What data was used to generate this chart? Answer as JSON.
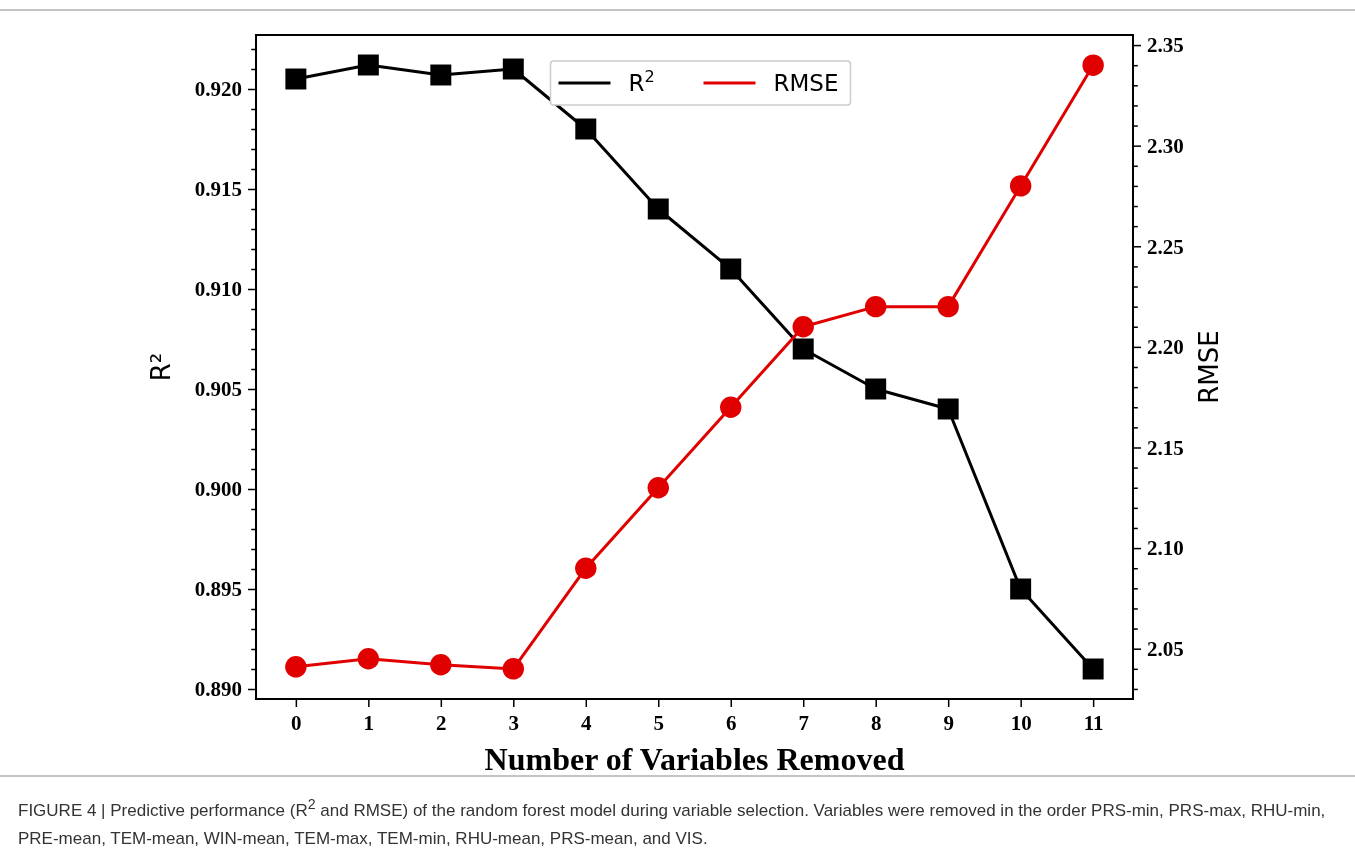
{
  "chart_data": {
    "type": "line",
    "xlabel": "Number of Variables Removed",
    "ylabel": "R²",
    "y2label": "RMSE",
    "x": [
      0,
      1,
      2,
      3,
      4,
      5,
      6,
      7,
      8,
      9,
      10,
      11
    ],
    "xlim": [
      -0.55,
      11.55
    ],
    "xticks": [
      0,
      1,
      2,
      3,
      4,
      5,
      6,
      7,
      8,
      9,
      10,
      11
    ],
    "ylim": [
      0.8895,
      0.9227
    ],
    "yticks": [
      "0.890",
      {
        "value": 0.891,
        "label": null
      },
      {
        "value": 0.892,
        "label": null
      },
      {
        "value": 0.893,
        "label": null
      },
      {
        "value": 0.894,
        "label": null
      },
      {
        "value": 0.895,
        "label": "0.895"
      },
      {
        "value": 0.896,
        "label": null
      },
      {
        "value": 0.897,
        "label": null
      },
      {
        "value": 0.898,
        "label": null
      },
      {
        "value": 0.899,
        "label": null
      },
      {
        "value": 0.9,
        "label": "0.900"
      },
      {
        "value": 0.901,
        "label": null
      },
      {
        "value": 0.902,
        "label": null
      },
      {
        "value": 0.903,
        "label": null
      },
      {
        "value": 0.904,
        "label": null
      },
      {
        "value": 0.905,
        "label": "0.905"
      },
      {
        "value": 0.906,
        "label": null
      },
      {
        "value": 0.907,
        "label": null
      },
      {
        "value": 0.908,
        "label": null
      },
      {
        "value": 0.909,
        "label": null
      },
      {
        "value": 0.91,
        "label": "0.910"
      },
      {
        "value": 0.911,
        "label": null
      },
      {
        "value": 0.912,
        "label": null
      },
      {
        "value": 0.913,
        "label": null
      },
      {
        "value": 0.914,
        "label": null
      },
      {
        "value": 0.915,
        "label": "0.915"
      },
      {
        "value": 0.916,
        "label": null
      },
      {
        "value": 0.917,
        "label": null
      },
      {
        "value": 0.918,
        "label": null
      },
      {
        "value": 0.919,
        "label": null
      },
      {
        "value": 0.92,
        "label": "0.920"
      },
      {
        "value": 0.921,
        "label": null
      },
      {
        "value": 0.922,
        "label": null
      }
    ],
    "y2lim": [
      2.025,
      2.355
    ],
    "y2ticks": [
      {
        "value": 2.03,
        "label": null
      },
      {
        "value": 2.04,
        "label": null
      },
      {
        "value": 2.05,
        "label": "2.05"
      },
      {
        "value": 2.06,
        "label": null
      },
      {
        "value": 2.07,
        "label": null
      },
      {
        "value": 2.08,
        "label": null
      },
      {
        "value": 2.09,
        "label": null
      },
      {
        "value": 2.1,
        "label": "2.10"
      },
      {
        "value": 2.11,
        "label": null
      },
      {
        "value": 2.12,
        "label": null
      },
      {
        "value": 2.13,
        "label": null
      },
      {
        "value": 2.14,
        "label": null
      },
      {
        "value": 2.15,
        "label": "2.15"
      },
      {
        "value": 2.16,
        "label": null
      },
      {
        "value": 2.17,
        "label": null
      },
      {
        "value": 2.18,
        "label": null
      },
      {
        "value": 2.19,
        "label": null
      },
      {
        "value": 2.2,
        "label": "2.20"
      },
      {
        "value": 2.21,
        "label": null
      },
      {
        "value": 2.22,
        "label": null
      },
      {
        "value": 2.23,
        "label": null
      },
      {
        "value": 2.24,
        "label": null
      },
      {
        "value": 2.25,
        "label": "2.25"
      },
      {
        "value": 2.26,
        "label": null
      },
      {
        "value": 2.27,
        "label": null
      },
      {
        "value": 2.28,
        "label": null
      },
      {
        "value": 2.29,
        "label": null
      },
      {
        "value": 2.3,
        "label": "2.30"
      },
      {
        "value": 2.31,
        "label": null
      },
      {
        "value": 2.32,
        "label": null
      },
      {
        "value": 2.33,
        "label": null
      },
      {
        "value": 2.34,
        "label": null
      },
      {
        "value": 2.35,
        "label": "2.35"
      }
    ],
    "series": [
      {
        "name": "R$^{2}$",
        "color": "#000000",
        "marker": "square",
        "values": [
          0.9205,
          0.9212,
          0.9207,
          0.921,
          0.918,
          0.914,
          0.911,
          0.907,
          0.905,
          0.904,
          0.895,
          0.891
        ]
      },
      {
        "name": "RMSE",
        "color": "#e00000",
        "marker": "circle",
        "axis": "y2",
        "values": [
          2.041,
          2.045,
          2.042,
          2.04,
          2.09,
          2.13,
          2.17,
          2.21,
          2.22,
          2.22,
          2.28,
          2.34
        ]
      }
    ],
    "legend": "top",
    "grid": false,
    "annotations": [
      "FIGURE 4 | Predictive performance (R$^{2}$ and RMSE) of the random forest model during variable selection. Variables were removed in the order PRS-min, PRS-max, RHU-min, PRE-mean, TEM-mean, WIN-mean, TEM-max, TEM-min, RHU-mean, PRS-mean, and VIS."
    ]
  }
}
